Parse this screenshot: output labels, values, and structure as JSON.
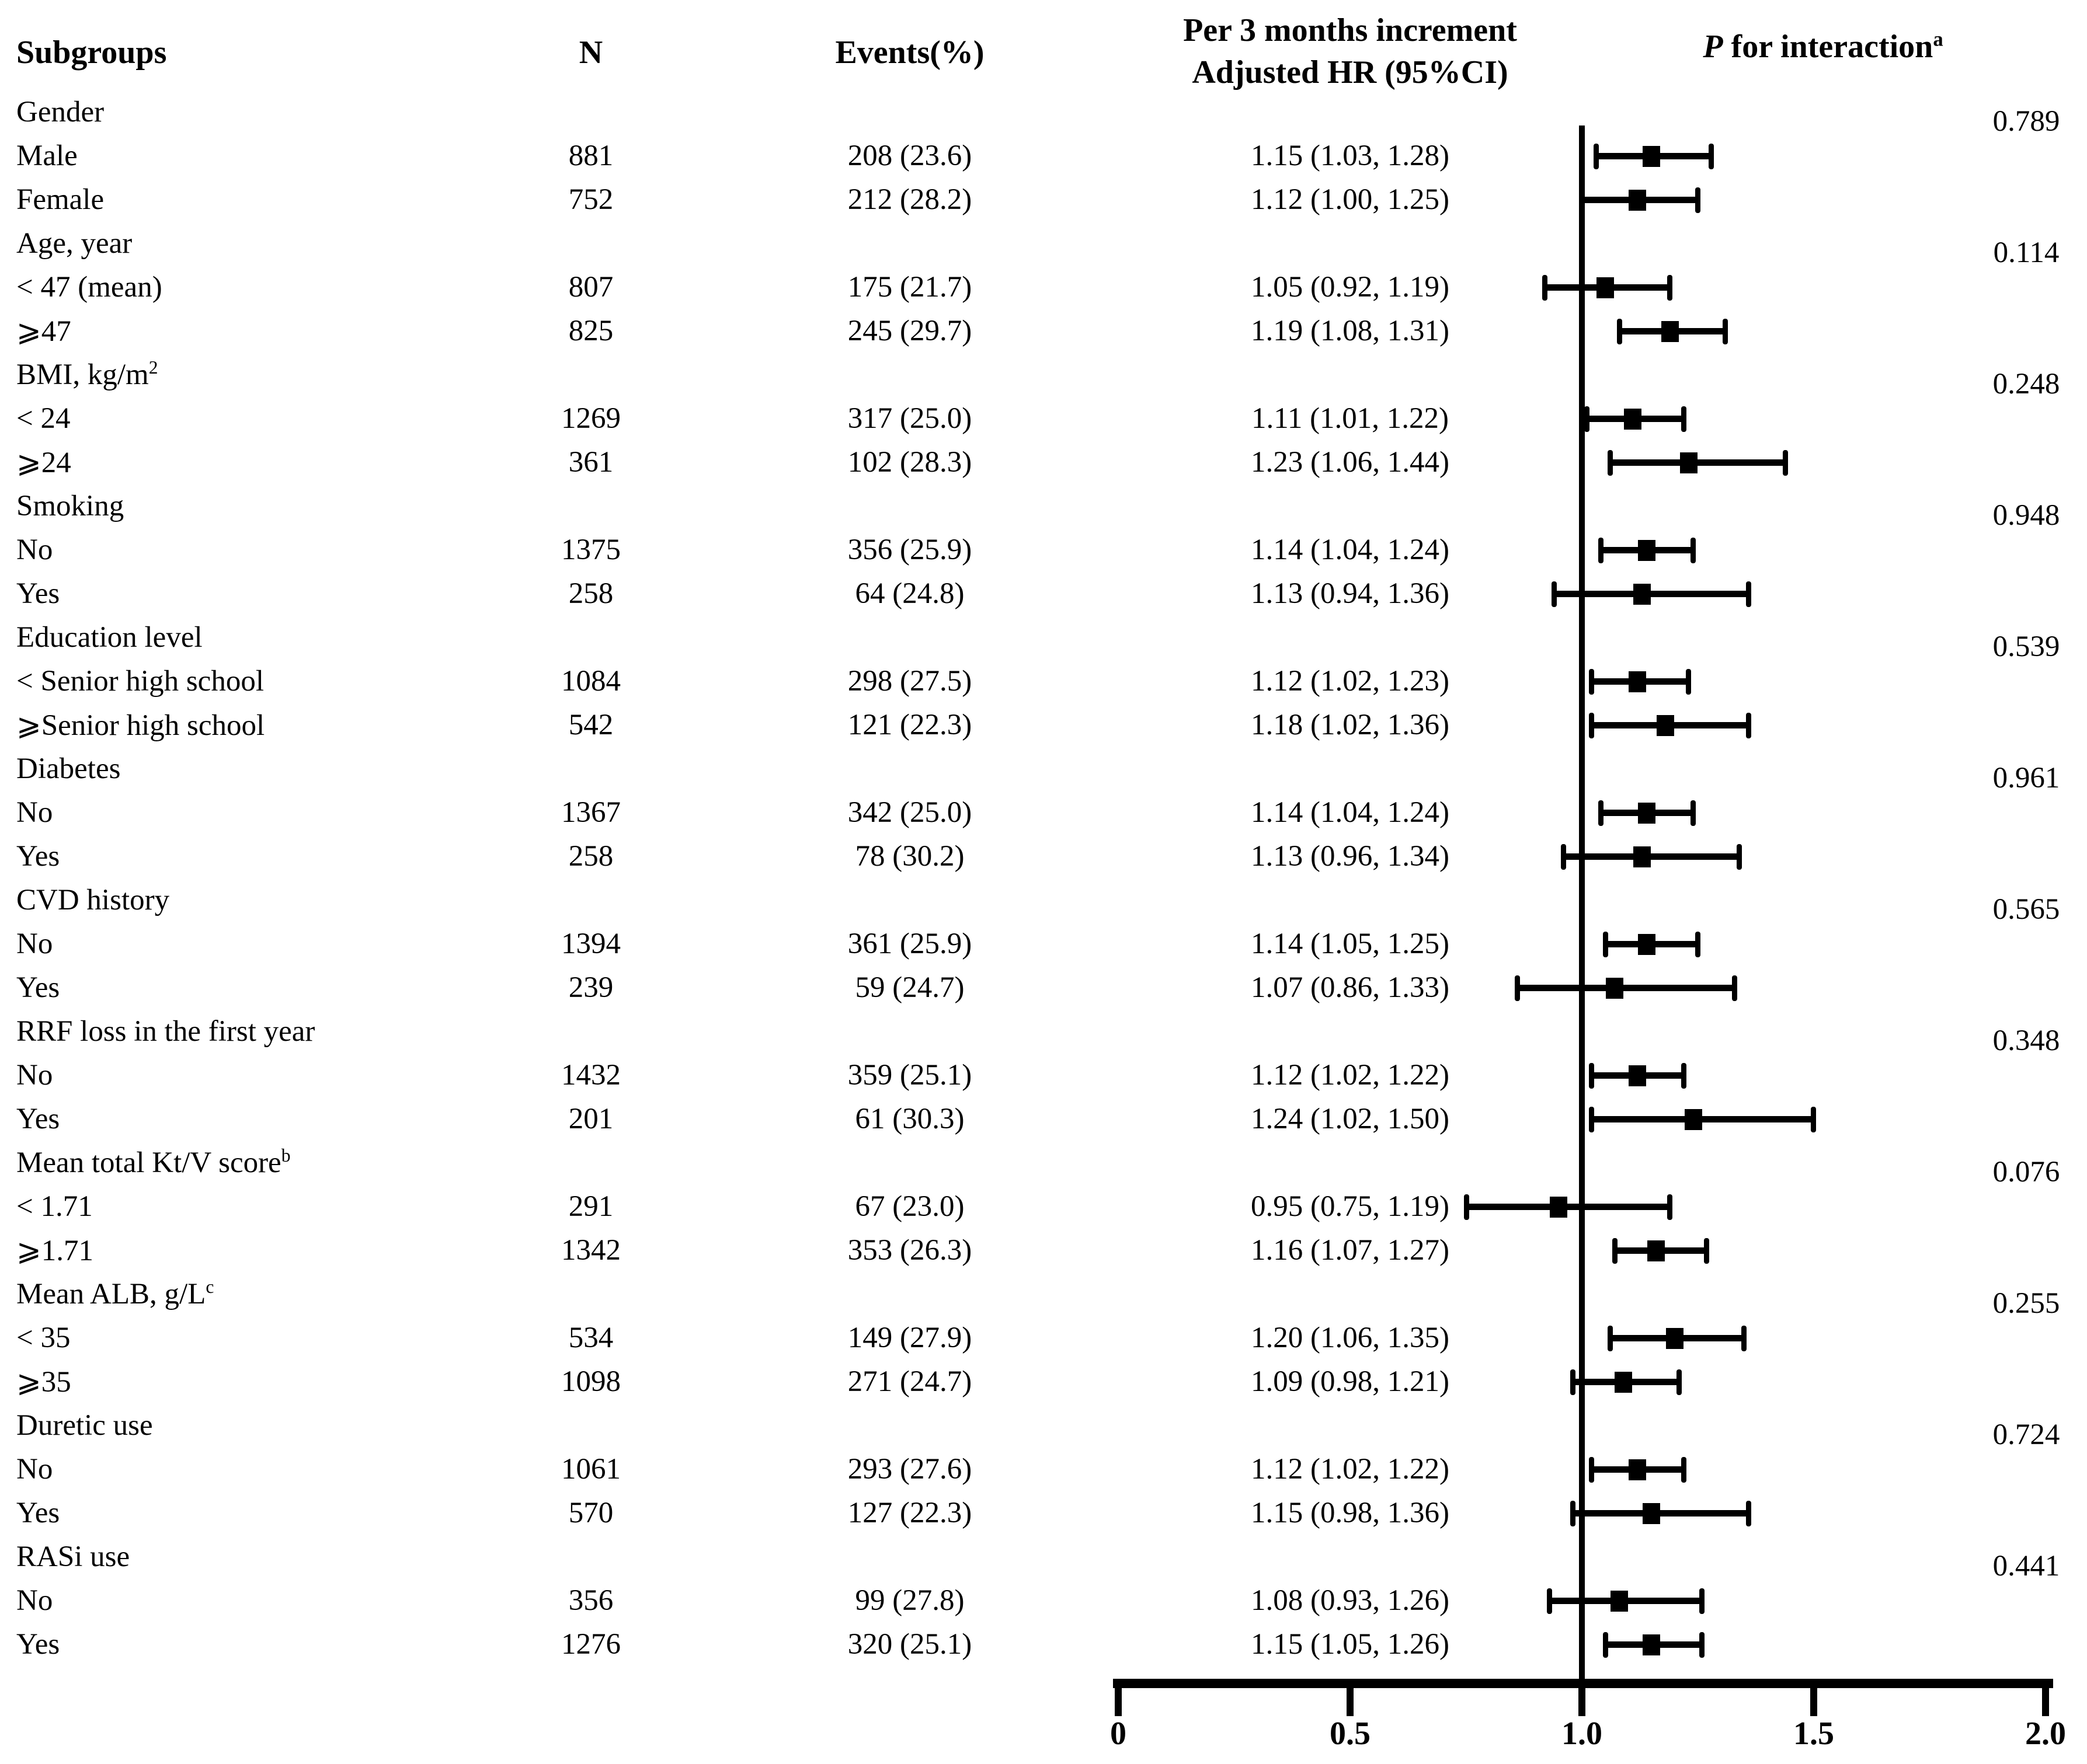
{
  "header": {
    "subgroups": "Subgroups",
    "n": "N",
    "events": "Events(%)",
    "hr_line1": "Per 3 months increment",
    "hr_line2": "Adjusted HR (95%CI)",
    "p_label_p": "P",
    "p_label_rest": " for interaction",
    "p_sup": "a"
  },
  "axis": {
    "tick_values": [
      0,
      0.5,
      1.0,
      1.5,
      2.0
    ],
    "tick_labels": [
      "0",
      "0.5",
      "1.0",
      "1.5",
      "2.0"
    ],
    "min": 0,
    "max": 2,
    "reference": 1.0
  },
  "chart_data": {
    "type": "forest",
    "title": "",
    "xlabel": "",
    "xlim": [
      0,
      2
    ],
    "x_ticks": [
      0,
      0.5,
      1.0,
      1.5,
      2.0
    ],
    "reference_line": 1.0,
    "marker": "black-square-with-error-bars",
    "columns": [
      "Subgroups",
      "N",
      "Events(%)",
      "Per 3 months increment Adjusted HR (95%CI)",
      "P for interaction"
    ],
    "groups": [
      {
        "label": "Gender",
        "sup": "",
        "p_interaction": "0.789",
        "rows": [
          {
            "label": "Male",
            "n": "881",
            "events": "208 (23.6)",
            "hr_text": "1.15 (1.03, 1.28)",
            "hr": 1.15,
            "lo": 1.03,
            "hi": 1.28
          },
          {
            "label": "Female",
            "n": "752",
            "events": "212 (28.2)",
            "hr_text": "1.12 (1.00, 1.25)",
            "hr": 1.12,
            "lo": 1.0,
            "hi": 1.25
          }
        ]
      },
      {
        "label": "Age, year",
        "sup": "",
        "p_interaction": "0.114",
        "rows": [
          {
            "label": "< 47 (mean)",
            "n": "807",
            "events": "175 (21.7)",
            "hr_text": "1.05 (0.92, 1.19)",
            "hr": 1.05,
            "lo": 0.92,
            "hi": 1.19
          },
          {
            "label": "⩾47",
            "n": "825",
            "events": "245 (29.7)",
            "hr_text": "1.19 (1.08, 1.31)",
            "hr": 1.19,
            "lo": 1.08,
            "hi": 1.31
          }
        ]
      },
      {
        "label": "BMI, kg/m",
        "sup": "2",
        "p_interaction": "0.248",
        "rows": [
          {
            "label": "< 24",
            "n": "1269",
            "events": "317 (25.0)",
            "hr_text": "1.11 (1.01, 1.22)",
            "hr": 1.11,
            "lo": 1.01,
            "hi": 1.22
          },
          {
            "label": "⩾24",
            "n": "361",
            "events": "102 (28.3)",
            "hr_text": "1.23 (1.06, 1.44)",
            "hr": 1.23,
            "lo": 1.06,
            "hi": 1.44
          }
        ]
      },
      {
        "label": "Smoking",
        "sup": "",
        "p_interaction": "0.948",
        "rows": [
          {
            "label": "No",
            "n": "1375",
            "events": "356 (25.9)",
            "hr_text": "1.14 (1.04, 1.24)",
            "hr": 1.14,
            "lo": 1.04,
            "hi": 1.24
          },
          {
            "label": "Yes",
            "n": "258",
            "events": "64 (24.8)",
            "hr_text": "1.13 (0.94, 1.36)",
            "hr": 1.13,
            "lo": 0.94,
            "hi": 1.36
          }
        ]
      },
      {
        "label": "Education level",
        "sup": "",
        "p_interaction": "0.539",
        "rows": [
          {
            "label": "< Senior high school",
            "n": "1084",
            "events": "298 (27.5)",
            "hr_text": "1.12 (1.02, 1.23)",
            "hr": 1.12,
            "lo": 1.02,
            "hi": 1.23
          },
          {
            "label": "⩾Senior high school",
            "n": "542",
            "events": "121 (22.3)",
            "hr_text": "1.18 (1.02, 1.36)",
            "hr": 1.18,
            "lo": 1.02,
            "hi": 1.36
          }
        ]
      },
      {
        "label": "Diabetes",
        "sup": "",
        "p_interaction": "0.961",
        "rows": [
          {
            "label": "No",
            "n": "1367",
            "events": "342 (25.0)",
            "hr_text": "1.14 (1.04, 1.24)",
            "hr": 1.14,
            "lo": 1.04,
            "hi": 1.24
          },
          {
            "label": "Yes",
            "n": "258",
            "events": "78 (30.2)",
            "hr_text": "1.13 (0.96, 1.34)",
            "hr": 1.13,
            "lo": 0.96,
            "hi": 1.34
          }
        ]
      },
      {
        "label": "CVD history",
        "sup": "",
        "p_interaction": "0.565",
        "rows": [
          {
            "label": "No",
            "n": "1394",
            "events": "361 (25.9)",
            "hr_text": "1.14 (1.05, 1.25)",
            "hr": 1.14,
            "lo": 1.05,
            "hi": 1.25
          },
          {
            "label": "Yes",
            "n": "239",
            "events": "59 (24.7)",
            "hr_text": "1.07 (0.86, 1.33)",
            "hr": 1.07,
            "lo": 0.86,
            "hi": 1.33
          }
        ]
      },
      {
        "label": "RRF loss in the first year",
        "sup": "",
        "p_interaction": "0.348",
        "rows": [
          {
            "label": "No",
            "n": "1432",
            "events": "359 (25.1)",
            "hr_text": "1.12 (1.02, 1.22)",
            "hr": 1.12,
            "lo": 1.02,
            "hi": 1.22
          },
          {
            "label": "Yes",
            "n": "201",
            "events": "61 (30.3)",
            "hr_text": "1.24 (1.02, 1.50)",
            "hr": 1.24,
            "lo": 1.02,
            "hi": 1.5
          }
        ]
      },
      {
        "label": "Mean total Kt/V score",
        "sup": "b",
        "p_interaction": "0.076",
        "rows": [
          {
            "label": "< 1.71",
            "n": "291",
            "events": "67 (23.0)",
            "hr_text": "0.95 (0.75, 1.19)",
            "hr": 0.95,
            "lo": 0.75,
            "hi": 1.19
          },
          {
            "label": "⩾1.71",
            "n": "1342",
            "events": "353 (26.3)",
            "hr_text": "1.16 (1.07, 1.27)",
            "hr": 1.16,
            "lo": 1.07,
            "hi": 1.27
          }
        ]
      },
      {
        "label": "Mean ALB, g/L",
        "sup": "c",
        "p_interaction": "0.255",
        "rows": [
          {
            "label": "< 35",
            "n": "534",
            "events": "149 (27.9)",
            "hr_text": "1.20 (1.06, 1.35)",
            "hr": 1.2,
            "lo": 1.06,
            "hi": 1.35
          },
          {
            "label": "⩾35",
            "n": "1098",
            "events": "271 (24.7)",
            "hr_text": "1.09 (0.98, 1.21)",
            "hr": 1.09,
            "lo": 0.98,
            "hi": 1.21
          }
        ]
      },
      {
        "label": "Duretic use",
        "sup": "",
        "p_interaction": "0.724",
        "rows": [
          {
            "label": "No",
            "n": "1061",
            "events": "293 (27.6)",
            "hr_text": "1.12 (1.02, 1.22)",
            "hr": 1.12,
            "lo": 1.02,
            "hi": 1.22
          },
          {
            "label": "Yes",
            "n": "570",
            "events": "127 (22.3)",
            "hr_text": "1.15 (0.98, 1.36)",
            "hr": 1.15,
            "lo": 0.98,
            "hi": 1.36
          }
        ]
      },
      {
        "label": "RASi use",
        "sup": "",
        "p_interaction": "0.441",
        "rows": [
          {
            "label": "No",
            "n": "356",
            "events": "99 (27.8)",
            "hr_text": "1.08 (0.93, 1.26)",
            "hr": 1.08,
            "lo": 0.93,
            "hi": 1.26
          },
          {
            "label": "Yes",
            "n": "1276",
            "events": "320 (25.1)",
            "hr_text": "1.15 (1.05, 1.26)",
            "hr": 1.15,
            "lo": 1.05,
            "hi": 1.26
          }
        ]
      }
    ]
  }
}
